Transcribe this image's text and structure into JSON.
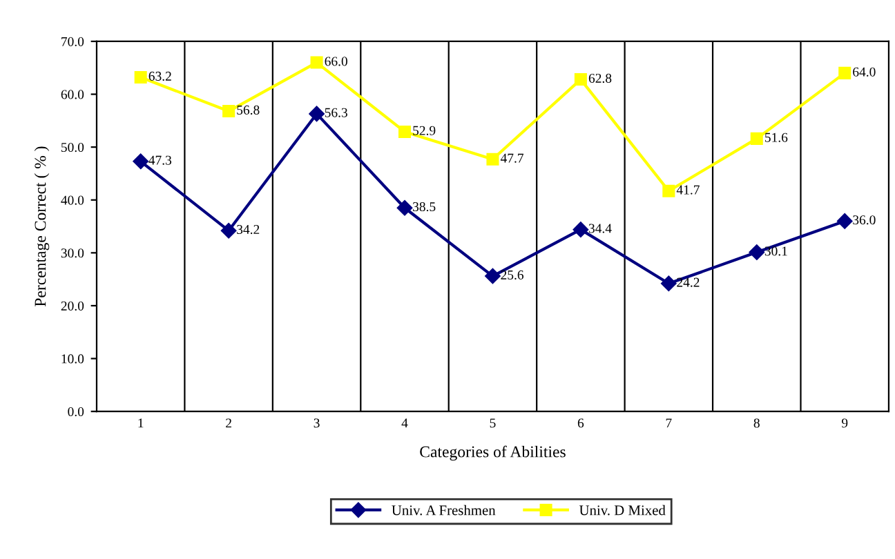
{
  "chart_data": {
    "type": "line",
    "xlabel": "Categories of Abilities",
    "ylabel": "Percentage Correct ( % )",
    "categories": [
      "1",
      "2",
      "3",
      "4",
      "5",
      "6",
      "7",
      "8",
      "9"
    ],
    "series": [
      {
        "name": "Univ. A Freshmen",
        "color": "#000080",
        "marker": "diamond",
        "values": [
          47.3,
          34.2,
          56.3,
          38.5,
          25.6,
          34.4,
          24.2,
          30.1,
          36.0
        ],
        "value_labels": [
          "47.3",
          "34.2",
          "56.3",
          "38.5",
          "25.6",
          "34.4",
          "24.2",
          "30.1",
          "36.0"
        ]
      },
      {
        "name": "Univ. D Mixed",
        "color": "#ffff00",
        "marker": "square",
        "values": [
          63.2,
          56.8,
          66.0,
          52.9,
          47.7,
          62.8,
          41.7,
          51.6,
          64.0
        ],
        "value_labels": [
          "63.2",
          "56.8",
          "66.0",
          "52.9",
          "47.7",
          "62.8",
          "41.7",
          "51.6",
          "64.0"
        ]
      }
    ],
    "ylim": [
      0,
      70
    ],
    "yticks": [
      {
        "value": 0,
        "label": "0.0"
      },
      {
        "value": 10,
        "label": "10.0"
      },
      {
        "value": 20,
        "label": "20.0"
      },
      {
        "value": 30,
        "label": "30.0"
      },
      {
        "value": 40,
        "label": "40.0"
      },
      {
        "value": 50,
        "label": "50.0"
      },
      {
        "value": 60,
        "label": "60.0"
      },
      {
        "value": 70,
        "label": "70.0"
      }
    ],
    "grid": "x",
    "legend": "bottom"
  }
}
